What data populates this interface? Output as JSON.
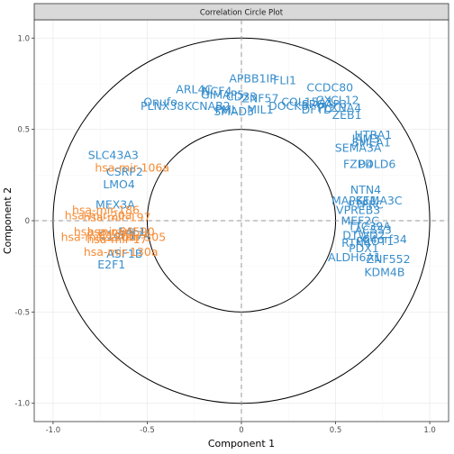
{
  "chart_data": {
    "type": "scatter",
    "title": "Correlation Circle Plot",
    "xlabel": "Component  1",
    "ylabel": "Component  2",
    "xlim": [
      -1.1,
      1.1
    ],
    "ylim": [
      -1.1,
      1.1
    ],
    "x_ticks": [
      "-1.0",
      "-0.5",
      "0",
      "0.5",
      "1.0"
    ],
    "y_ticks": [
      "-1.0",
      "-0.5",
      "0",
      "0.5",
      "1.0"
    ],
    "x_tick_values": [
      -1,
      -0.5,
      0,
      0.5,
      1
    ],
    "y_tick_values": [
      -1,
      -0.5,
      0,
      0.5,
      1
    ],
    "circles": [
      1.0,
      0.5
    ],
    "grid": true,
    "colors": {
      "blue_group": "#388ECC",
      "orange_group": "#F68B33"
    },
    "points": [
      {
        "label": "APBB1IP",
        "x": 0.06,
        "y": 0.78,
        "color": "#388ECC"
      },
      {
        "label": "FLI1",
        "x": 0.23,
        "y": 0.77,
        "color": "#388ECC"
      },
      {
        "label": "ARL4C",
        "x": -0.25,
        "y": 0.72,
        "color": "#388ECC"
      },
      {
        "label": "NCF4",
        "x": -0.13,
        "y": 0.71,
        "color": "#388ECC"
      },
      {
        "label": "GIMAP5",
        "x": -0.1,
        "y": 0.69,
        "color": "#388ECC"
      },
      {
        "label": "CD33",
        "x": 0.0,
        "y": 0.68,
        "color": "#388ECC"
      },
      {
        "label": "ZNF57",
        "x": 0.1,
        "y": 0.67,
        "color": "#388ECC"
      },
      {
        "label": "CCDC80",
        "x": 0.47,
        "y": 0.73,
        "color": "#388ECC"
      },
      {
        "label": "CXCL12",
        "x": 0.51,
        "y": 0.66,
        "color": "#388ECC"
      },
      {
        "label": "COL15A1",
        "x": 0.35,
        "y": 0.65,
        "color": "#388ECC"
      },
      {
        "label": "SRGAP3",
        "x": 0.44,
        "y": 0.64,
        "color": "#388ECC"
      },
      {
        "label": "PLXNA4",
        "x": 0.52,
        "y": 0.62,
        "color": "#388ECC"
      },
      {
        "label": "Onufo",
        "x": -0.43,
        "y": 0.65,
        "color": "#388ECC"
      },
      {
        "label": "PLNX38",
        "x": -0.42,
        "y": 0.63,
        "color": "#388ECC"
      },
      {
        "label": "KCNAB2",
        "x": -0.18,
        "y": 0.63,
        "color": "#388ECC"
      },
      {
        "label": "DOCK8",
        "x": 0.25,
        "y": 0.63,
        "color": "#388ECC"
      },
      {
        "label": "DFYD",
        "x": 0.4,
        "y": 0.61,
        "color": "#388ECC"
      },
      {
        "label": "SMAD3",
        "x": -0.04,
        "y": 0.6,
        "color": "#388ECC"
      },
      {
        "label": "PML",
        "x": -0.08,
        "y": 0.61,
        "color": "#388ECC"
      },
      {
        "label": "MIL1",
        "x": 0.1,
        "y": 0.61,
        "color": "#388ECC"
      },
      {
        "label": "ZEB1",
        "x": 0.56,
        "y": 0.58,
        "color": "#388ECC"
      },
      {
        "label": "HTRA1",
        "x": 0.7,
        "y": 0.47,
        "color": "#388ECC"
      },
      {
        "label": "JAM3",
        "x": 0.66,
        "y": 0.45,
        "color": "#388ECC"
      },
      {
        "label": "SMEA1",
        "x": 0.69,
        "y": 0.43,
        "color": "#388ECC"
      },
      {
        "label": "SEMA3A",
        "x": 0.62,
        "y": 0.4,
        "color": "#388ECC"
      },
      {
        "label": "FZD4",
        "x": 0.62,
        "y": 0.31,
        "color": "#388ECC"
      },
      {
        "label": "PDLD6",
        "x": 0.72,
        "y": 0.31,
        "color": "#388ECC"
      },
      {
        "label": "SLC43A3",
        "x": -0.68,
        "y": 0.36,
        "color": "#388ECC"
      },
      {
        "label": "CSRP2",
        "x": -0.62,
        "y": 0.27,
        "color": "#388ECC"
      },
      {
        "label": "LMO4",
        "x": -0.65,
        "y": 0.2,
        "color": "#388ECC"
      },
      {
        "label": "NTN4",
        "x": 0.66,
        "y": 0.17,
        "color": "#388ECC"
      },
      {
        "label": "MAPK11",
        "x": 0.6,
        "y": 0.11,
        "color": "#388ECC"
      },
      {
        "label": "SEMA3C",
        "x": 0.73,
        "y": 0.11,
        "color": "#388ECC"
      },
      {
        "label": "VPREB3",
        "x": 0.62,
        "y": 0.06,
        "color": "#388ECC"
      },
      {
        "label": "PTPRC",
        "x": 0.66,
        "y": 0.09,
        "color": "#388ECC"
      },
      {
        "label": "MEF2C",
        "x": 0.63,
        "y": 0.0,
        "color": "#388ECC"
      },
      {
        "label": "MEX3A",
        "x": -0.67,
        "y": 0.09,
        "color": "#388ECC"
      },
      {
        "label": "C4orf34",
        "x": 0.76,
        "y": -0.1,
        "color": "#388ECC"
      },
      {
        "label": "ACSS3",
        "x": 0.7,
        "y": -0.05,
        "color": "#388ECC"
      },
      {
        "label": "TTC39A",
        "x": 0.68,
        "y": -0.03,
        "color": "#388ECC"
      },
      {
        "label": "DTWD2",
        "x": 0.65,
        "y": -0.08,
        "color": "#388ECC"
      },
      {
        "label": "PROT1",
        "x": 0.71,
        "y": -0.11,
        "color": "#388ECC"
      },
      {
        "label": "RTN4",
        "x": 0.61,
        "y": -0.12,
        "color": "#388ECC"
      },
      {
        "label": "PDX1",
        "x": 0.65,
        "y": -0.15,
        "color": "#388ECC"
      },
      {
        "label": "ALDH6A1",
        "x": 0.6,
        "y": -0.2,
        "color": "#388ECC"
      },
      {
        "label": "ZNF552",
        "x": 0.78,
        "y": -0.21,
        "color": "#388ECC"
      },
      {
        "label": "KDM4B",
        "x": 0.76,
        "y": -0.28,
        "color": "#388ECC"
      },
      {
        "label": "ASF1B",
        "x": -0.62,
        "y": -0.18,
        "color": "#388ECC"
      },
      {
        "label": "E2F1",
        "x": -0.69,
        "y": -0.24,
        "color": "#388ECC"
      },
      {
        "label": "C1orf174",
        "x": -0.62,
        "y": -0.08,
        "color": "#388ECC"
      },
      {
        "label": "E4F1",
        "x": -0.58,
        "y": -0.06,
        "color": "#388ECC"
      },
      {
        "label": "hsa-mir-106a",
        "x": -0.58,
        "y": 0.29,
        "color": "#F68B33"
      },
      {
        "label": "hsa-mir-186",
        "x": -0.72,
        "y": 0.06,
        "color": "#F68B33"
      },
      {
        "label": "hsa-mir-20a",
        "x": -0.76,
        "y": 0.03,
        "color": "#F68B33"
      },
      {
        "label": "hsa-mir-197",
        "x": -0.66,
        "y": 0.02,
        "color": "#F68B33"
      },
      {
        "label": "hsa-mir-93",
        "x": -0.73,
        "y": -0.06,
        "color": "#F68B33"
      },
      {
        "label": "hsa-mir-590",
        "x": -0.64,
        "y": -0.06,
        "color": "#F68B33"
      },
      {
        "label": "hsa-mir-130b",
        "x": -0.76,
        "y": -0.09,
        "color": "#F68B33"
      },
      {
        "label": "hsa-mir-17",
        "x": -0.66,
        "y": -0.1,
        "color": "#F68B33"
      },
      {
        "label": "hsa-mir-505",
        "x": -0.58,
        "y": -0.09,
        "color": "#F68B33"
      },
      {
        "label": "hsa-mir-130a",
        "x": -0.64,
        "y": -0.17,
        "color": "#F68B33"
      }
    ]
  }
}
